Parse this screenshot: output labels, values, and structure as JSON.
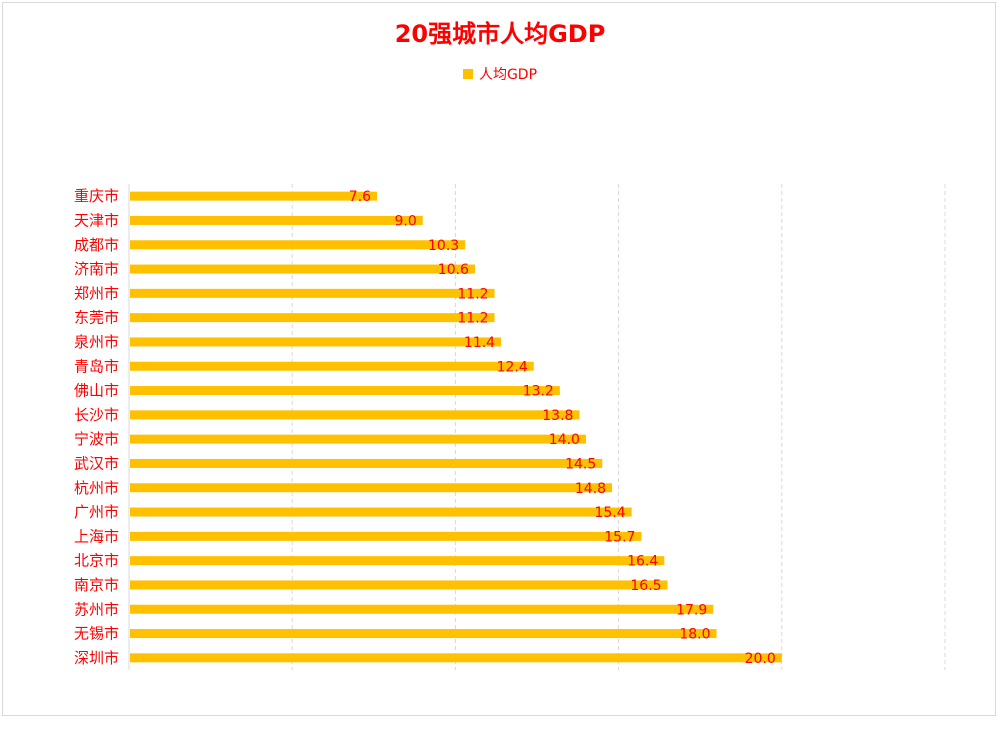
{
  "chart_data": {
    "type": "bar",
    "orientation": "horizontal",
    "title": "20强城市人均GDP",
    "legend": {
      "position": "top-center",
      "entries": [
        "人均GDP"
      ]
    },
    "series": [
      {
        "name": "人均GDP",
        "color": "#ffc000",
        "values": [
          7.6,
          9.0,
          10.3,
          10.6,
          11.2,
          11.2,
          11.4,
          12.4,
          13.2,
          13.8,
          14.0,
          14.5,
          14.8,
          15.4,
          15.7,
          16.4,
          16.5,
          17.9,
          18.0,
          20.0
        ],
        "labels": [
          "7.6",
          "9.0",
          "10.3",
          "10.6",
          "11.2",
          "11.2",
          "11.4",
          "12.4",
          "13.2",
          "13.8",
          "14.0",
          "14.5",
          "14.8",
          "15.4",
          "15.7",
          "16.4",
          "16.5",
          "17.9",
          "18.0",
          "20.0"
        ]
      }
    ],
    "categories": [
      "重庆市",
      "天津市",
      "成都市",
      "济南市",
      "郑州市",
      "东莞市",
      "泉州市",
      "青岛市",
      "佛山市",
      "长沙市",
      "宁波市",
      "武汉市",
      "杭州市",
      "广州市",
      "上海市",
      "北京市",
      "南京市",
      "苏州市",
      "无锡市",
      "深圳市"
    ],
    "xlim": [
      0,
      25
    ],
    "grid": "vertical-dashed",
    "text_color": "#ff0000"
  }
}
